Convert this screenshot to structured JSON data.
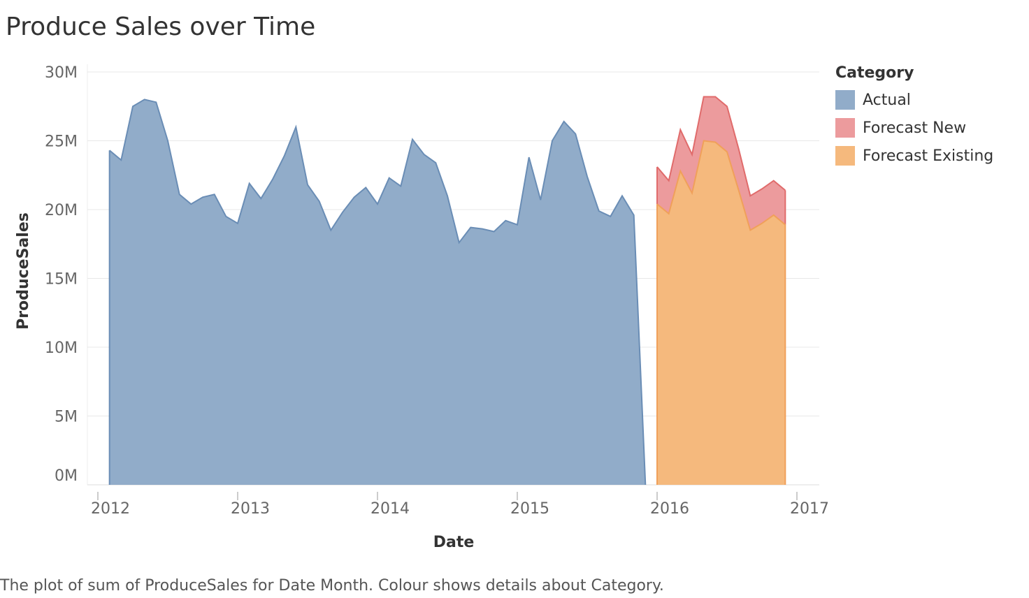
{
  "title": "Produce Sales over Time",
  "caption": "The plot of sum of ProduceSales for Date Month.  Colour shows details about Category.",
  "legend": {
    "title": "Category",
    "items": [
      {
        "label": "Actual",
        "color": "#91acc9"
      },
      {
        "label": "Forecast New",
        "color": "#ec9b9d"
      },
      {
        "label": "Forecast Existing",
        "color": "#f5b97d"
      }
    ]
  },
  "chart_data": {
    "type": "area",
    "xlabel": "Date",
    "ylabel": "ProduceSales",
    "ylim": [
      0,
      30000000
    ],
    "xlim": [
      "2012-01-01",
      "2017-01-01"
    ],
    "grid": true,
    "legend_position": "right",
    "yticks": [
      {
        "value": 0,
        "label": "0M"
      },
      {
        "value": 5000000,
        "label": "5M"
      },
      {
        "value": 10000000,
        "label": "10M"
      },
      {
        "value": 15000000,
        "label": "15M"
      },
      {
        "value": 20000000,
        "label": "20M"
      },
      {
        "value": 25000000,
        "label": "25M"
      },
      {
        "value": 30000000,
        "label": "30M"
      }
    ],
    "xticks": [
      {
        "value": "2012-01",
        "label": "2012"
      },
      {
        "value": "2013-01",
        "label": "2013"
      },
      {
        "value": "2014-01",
        "label": "2014"
      },
      {
        "value": "2015-01",
        "label": "2015"
      },
      {
        "value": "2016-01",
        "label": "2016"
      },
      {
        "value": "2017-01",
        "label": "2017"
      }
    ],
    "series": [
      {
        "name": "Actual",
        "color": "#91acc9",
        "stroke": "#6a8db5",
        "x": [
          "2012-02",
          "2012-03",
          "2012-04",
          "2012-05",
          "2012-06",
          "2012-07",
          "2012-08",
          "2012-09",
          "2012-10",
          "2012-11",
          "2012-12",
          "2013-01",
          "2013-02",
          "2013-03",
          "2013-04",
          "2013-05",
          "2013-06",
          "2013-07",
          "2013-08",
          "2013-09",
          "2013-10",
          "2013-11",
          "2013-12",
          "2014-01",
          "2014-02",
          "2014-03",
          "2014-04",
          "2014-05",
          "2014-06",
          "2014-07",
          "2014-08",
          "2014-09",
          "2014-10",
          "2014-11",
          "2014-12",
          "2015-01",
          "2015-02",
          "2015-03",
          "2015-04",
          "2015-05",
          "2015-06",
          "2015-07",
          "2015-08",
          "2015-09",
          "2015-10",
          "2015-11",
          "2015-12"
        ],
        "values": [
          24300000,
          23600000,
          27500000,
          28000000,
          27800000,
          25000000,
          21100000,
          20400000,
          20900000,
          21100000,
          19500000,
          19000000,
          21900000,
          20800000,
          22200000,
          23900000,
          26000000,
          21800000,
          20600000,
          18500000,
          19800000,
          20900000,
          21600000,
          20400000,
          22300000,
          21700000,
          25100000,
          24000000,
          23400000,
          21000000,
          17600000,
          18700000,
          18600000,
          18400000,
          19200000,
          18900000,
          23800000,
          20700000,
          25000000,
          26400000,
          25500000,
          22400000,
          19900000,
          19500000,
          21000000,
          19600000,
          0
        ]
      },
      {
        "name": "Forecast Existing",
        "color": "#f5b97d",
        "stroke": "#f0a05a",
        "x": [
          "2016-01",
          "2016-02",
          "2016-03",
          "2016-04",
          "2016-05",
          "2016-06",
          "2016-07",
          "2016-08",
          "2016-09",
          "2016-10",
          "2016-11",
          "2016-12"
        ],
        "values": [
          20400000,
          19700000,
          22800000,
          21200000,
          25000000,
          24900000,
          24200000,
          21400000,
          18500000,
          19000000,
          19600000,
          18900000
        ]
      },
      {
        "name": "Forecast New",
        "color": "#ec9b9d",
        "stroke": "#e06b6b",
        "x": [
          "2016-01",
          "2016-02",
          "2016-03",
          "2016-04",
          "2016-05",
          "2016-06",
          "2016-07",
          "2016-08",
          "2016-09",
          "2016-10",
          "2016-11",
          "2016-12"
        ],
        "values": [
          2700000,
          2400000,
          3000000,
          2800000,
          3200000,
          3300000,
          3300000,
          3000000,
          2500000,
          2500000,
          2500000,
          2500000
        ],
        "stacked_on": "Forecast Existing"
      }
    ]
  }
}
